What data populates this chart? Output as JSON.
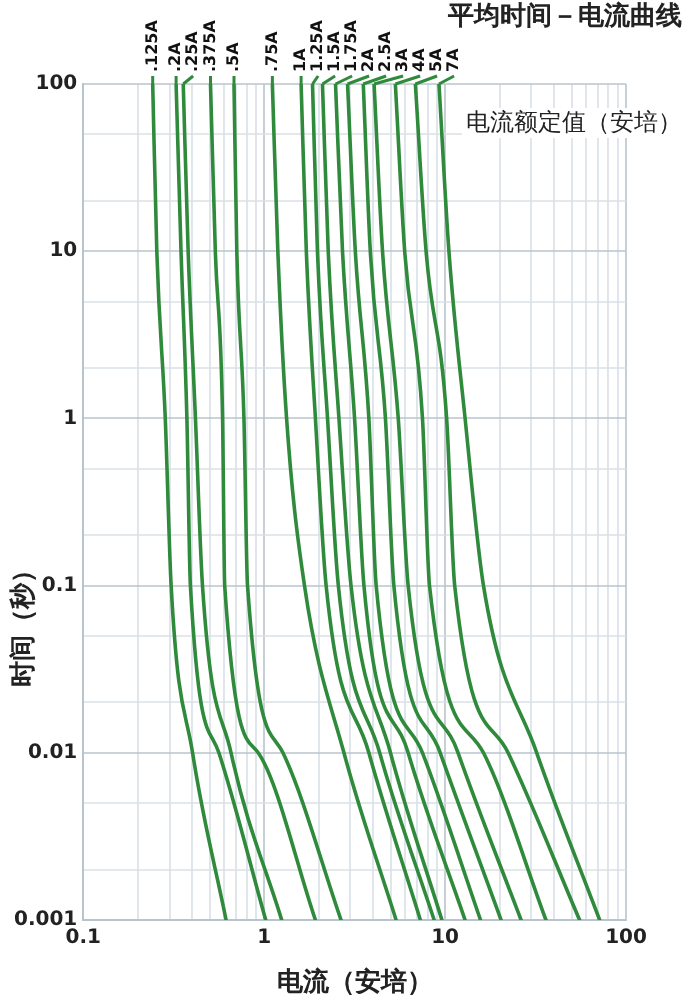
{
  "chart_data": {
    "type": "line",
    "title": "平均时间－电流曲线",
    "xlabel": "电流（安培）",
    "ylabel": "时间（秒）",
    "annotations": [
      "电流额定值（安培）"
    ],
    "log": "xy",
    "grid": true,
    "legend": false,
    "marker": "none",
    "line_style": "solid",
    "xlim": [
      0.1,
      100
    ],
    "ylim": [
      0.001,
      100
    ],
    "xticks": [
      0.1,
      {
        "value": 0.2,
        "label": null
      },
      {
        "value": 0.3,
        "label": null
      },
      {
        "value": 0.4,
        "label": null
      },
      {
        "value": 0.5,
        "label": null
      },
      {
        "value": 0.6,
        "label": null
      },
      {
        "value": 0.7,
        "label": null
      },
      {
        "value": 0.8,
        "label": null
      },
      {
        "value": 0.9,
        "label": null
      },
      1,
      {
        "value": 2,
        "label": null
      },
      {
        "value": 3,
        "label": null
      },
      {
        "value": 4,
        "label": null
      },
      {
        "value": 5,
        "label": null
      },
      {
        "value": 6,
        "label": null
      },
      {
        "value": 7,
        "label": null
      },
      {
        "value": 8,
        "label": null
      },
      {
        "value": 9,
        "label": null
      },
      10,
      {
        "value": 20,
        "label": null
      },
      {
        "value": 30,
        "label": null
      },
      {
        "value": 40,
        "label": null
      },
      {
        "value": 50,
        "label": null
      },
      {
        "value": 60,
        "label": null
      },
      {
        "value": 70,
        "label": null
      },
      {
        "value": 80,
        "label": null
      },
      {
        "value": 90,
        "label": null
      },
      100
    ],
    "yticks": [
      0.001,
      {
        "value": 0.002,
        "label": null
      },
      {
        "value": 0.005,
        "label": null
      },
      0.01,
      {
        "value": 0.02,
        "label": null
      },
      {
        "value": 0.05,
        "label": null
      },
      0.1,
      {
        "value": 0.2,
        "label": null
      },
      {
        "value": 0.5,
        "label": null
      },
      1,
      {
        "value": 2,
        "label": null
      },
      {
        "value": 5,
        "label": null
      },
      10,
      {
        "value": 20,
        "label": null
      },
      {
        "value": 50,
        "label": null
      },
      100
    ],
    "series": [
      {
        "name": ".125A",
        "color": "#2f8a3c",
        "x": [
          0.242,
          0.255,
          0.284,
          0.306,
          0.402,
          0.616
        ],
        "values": [
          100,
          10,
          1,
          0.1,
          0.01,
          0.001
        ]
      },
      {
        "name": ".2A",
        "color": "#2f8a3c",
        "x": [
          0.326,
          0.347,
          0.374,
          0.391,
          0.562,
          1.02
        ],
        "values": [
          100,
          10,
          1,
          0.1,
          0.01,
          0.001
        ]
      },
      {
        "name": ".25A",
        "color": "#2f8a3c",
        "x": [
          0.357,
          0.38,
          0.417,
          0.456,
          0.656,
          1.25
        ],
        "values": [
          100,
          10,
          1,
          0.1,
          0.01,
          0.001
        ]
      },
      {
        "name": ".375A",
        "color": "#2f8a3c",
        "x": [
          0.505,
          0.537,
          0.589,
          0.605,
          0.927,
          1.92
        ],
        "values": [
          100,
          10,
          1,
          0.1,
          0.01,
          0.001
        ]
      },
      {
        "name": ".5A",
        "color": "#2f8a3c",
        "x": [
          0.681,
          0.706,
          0.773,
          0.809,
          1.27,
          2.66
        ],
        "values": [
          100,
          10,
          1,
          0.1,
          0.01,
          0.001
        ]
      },
      {
        "name": ".75A",
        "color": "#2f8a3c",
        "x": [
          1.11,
          1.19,
          1.33,
          1.67,
          2.76,
          5.36
        ],
        "values": [
          100,
          10,
          1,
          0.1,
          0.01,
          0.001
        ]
      },
      {
        "name": "1A",
        "color": "#2f8a3c",
        "x": [
          1.6,
          1.71,
          1.92,
          2.2,
          3.79,
          7.3
        ],
        "values": [
          100,
          10,
          1,
          0.1,
          0.01,
          0.001
        ]
      },
      {
        "name": "1.25A",
        "color": "#2f8a3c",
        "x": [
          1.85,
          1.97,
          2.24,
          2.57,
          4.35,
          8.7
        ],
        "values": [
          100,
          10,
          1,
          0.1,
          0.01,
          0.001
        ]
      },
      {
        "name": "1.5A",
        "color": "#2f8a3c",
        "x": [
          2.1,
          2.26,
          2.59,
          3.02,
          4.99,
          9.6
        ],
        "values": [
          100,
          10,
          1,
          0.1,
          0.01,
          0.001
        ]
      },
      {
        "name": "1.75A",
        "color": "#2f8a3c",
        "x": [
          2.48,
          2.71,
          3.16,
          3.56,
          6.25,
          12.9
        ],
        "values": [
          100,
          10,
          1,
          0.1,
          0.01,
          0.001
        ]
      },
      {
        "name": "2A",
        "color": "#2f8a3c",
        "x": [
          2.89,
          3.19,
          3.79,
          4.16,
          7.5,
          15.7
        ],
        "values": [
          100,
          10,
          1,
          0.1,
          0.01,
          0.001
        ]
      },
      {
        "name": "2.5A",
        "color": "#2f8a3c",
        "x": [
          3.53,
          3.86,
          4.68,
          5.21,
          9.4,
          20.4
        ],
        "values": [
          100,
          10,
          1,
          0.1,
          0.01,
          0.001
        ]
      },
      {
        "name": "3A",
        "color": "#2f8a3c",
        "x": [
          4.05,
          4.51,
          5.51,
          6.25,
          11.8,
          26.3
        ],
        "values": [
          100,
          10,
          1,
          0.1,
          0.01,
          0.001
        ]
      },
      {
        "name": "4A",
        "color": "#2f8a3c",
        "x": [
          5.31,
          5.98,
          7.5,
          8.2,
          16.3,
          36.1
        ],
        "values": [
          100,
          10,
          1,
          0.1,
          0.01,
          0.001
        ]
      },
      {
        "name": "5A",
        "color": "#2f8a3c",
        "x": [
          6.85,
          7.85,
          10.2,
          11.3,
          22.3,
          55.4
        ],
        "values": [
          100,
          10,
          1,
          0.1,
          0.01,
          0.001
        ]
      },
      {
        "name": "7A",
        "color": "#2f8a3c",
        "x": [
          9.25,
          10.5,
          12.9,
          16.3,
          32.1,
          71.5
        ],
        "values": [
          100,
          10,
          1,
          0.1,
          0.01,
          0.001
        ]
      }
    ]
  }
}
